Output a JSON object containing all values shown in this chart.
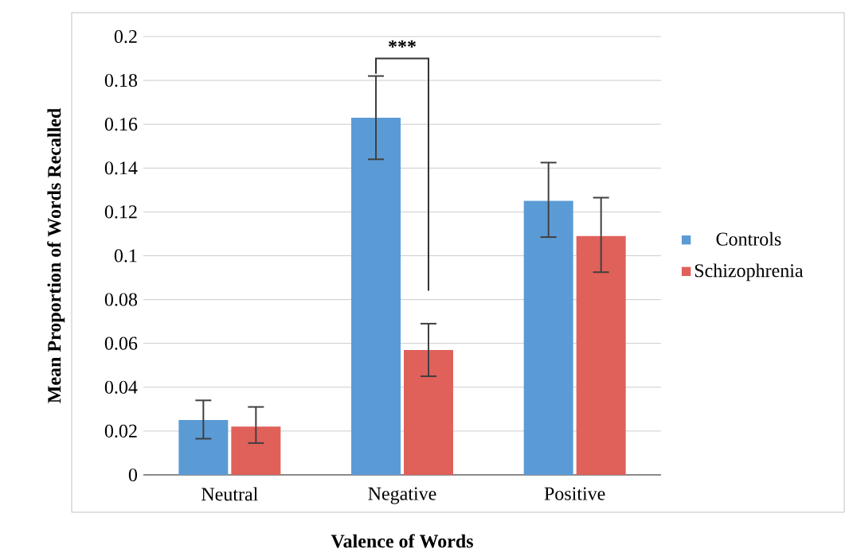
{
  "chart_data": {
    "type": "bar",
    "xlabel": "Valence of Words",
    "ylabel": "Mean Proportion of Words Recalled",
    "categories": [
      "Neutral",
      "Negative",
      "Positive"
    ],
    "series": [
      {
        "name": "Controls",
        "color": "#5b9bd5",
        "values": [
          0.025,
          0.163,
          0.125
        ],
        "errors": [
          [
            0.0165,
            0.034
          ],
          [
            0.144,
            0.182
          ],
          [
            0.1085,
            0.1425
          ]
        ]
      },
      {
        "name": "Schizophrenia",
        "color": "#e0605a",
        "values": [
          0.022,
          0.057,
          0.109
        ],
        "errors": [
          [
            0.0145,
            0.031
          ],
          [
            0.045,
            0.069
          ],
          [
            0.0925,
            0.1265
          ]
        ]
      }
    ],
    "ylim": [
      0,
      0.2
    ],
    "yticks": [
      0,
      0.02,
      0.04,
      0.06,
      0.08,
      0.1,
      0.12,
      0.14,
      0.16,
      0.18,
      0.2
    ],
    "grid": "y",
    "legend": "right",
    "annotations": [
      "***"
    ]
  }
}
